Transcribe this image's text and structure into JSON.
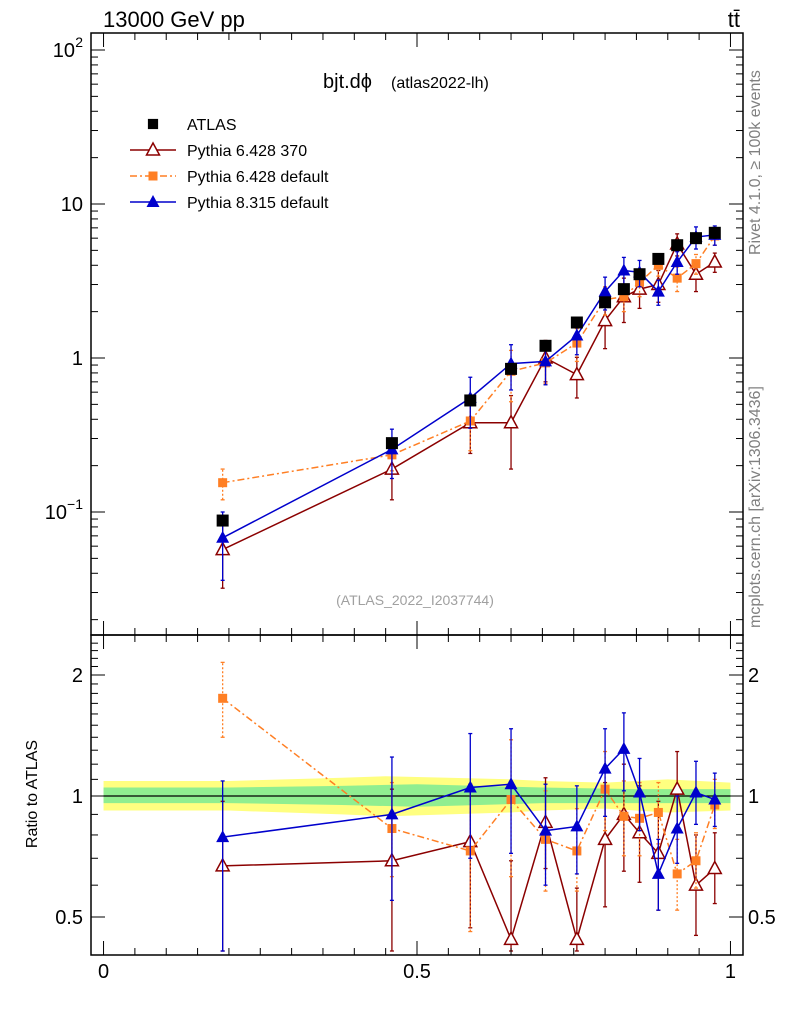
{
  "header": {
    "energy_label": "13000 GeV pp",
    "process_label": "tt̄"
  },
  "side_text": {
    "rivet": "Rivet 4.1.0, ≥ 100k events",
    "mcplots": "mcplots.cern.ch [arXiv:1306.3436]"
  },
  "chart_data": {
    "type": "line",
    "title_main": "bjt.dϕ",
    "title_sub": "(atlas2022-lh)",
    "analysis_label": "(ATLAS_2022_I2037744)",
    "main_panel": {
      "yscale": "log",
      "ylim": [
        0.02,
        130
      ],
      "xlim": [
        -0.02,
        1.02
      ],
      "y_ticks": [
        {
          "value": 0.1,
          "base": "10",
          "exp": "−1"
        },
        {
          "value": 1,
          "base": "1",
          "exp": ""
        },
        {
          "value": 10,
          "base": "10",
          "exp": ""
        },
        {
          "value": 100,
          "base": "10",
          "exp": "2"
        }
      ]
    },
    "ratio_panel": {
      "ylabel": "Ratio to ATLAS",
      "yscale": "log",
      "ylim": [
        0.4,
        2.4
      ],
      "y_ticks": [
        {
          "value": 0.5,
          "label": "0.5"
        },
        {
          "value": 1,
          "label": "1"
        },
        {
          "value": 2,
          "label": "2"
        }
      ],
      "x_ticks": [
        {
          "value": 0,
          "label": "0"
        },
        {
          "value": 0.5,
          "label": "0.5"
        },
        {
          "value": 1,
          "label": "1"
        }
      ],
      "band_outer": [
        [
          0.0,
          0.92,
          1.09
        ],
        [
          0.2,
          0.92,
          1.09
        ],
        [
          0.38,
          0.9,
          1.11
        ],
        [
          0.45,
          0.89,
          1.12
        ],
        [
          0.55,
          0.9,
          1.11
        ],
        [
          0.65,
          0.91,
          1.1
        ],
        [
          0.7,
          0.92,
          1.09
        ],
        [
          0.8,
          0.93,
          1.08
        ],
        [
          0.9,
          0.91,
          1.1
        ],
        [
          1.0,
          0.92,
          1.08
        ]
      ],
      "band_inner": [
        [
          0.0,
          0.96,
          1.05
        ],
        [
          0.2,
          0.96,
          1.05
        ],
        [
          0.38,
          0.95,
          1.06
        ],
        [
          0.5,
          0.94,
          1.07
        ],
        [
          0.6,
          0.95,
          1.06
        ],
        [
          0.7,
          0.96,
          1.05
        ],
        [
          0.85,
          0.96,
          1.04
        ],
        [
          1.0,
          0.96,
          1.04
        ]
      ]
    },
    "legend": [
      {
        "name": "ATLAS",
        "color": "#000000",
        "marker": "square"
      },
      {
        "name": "Pythia 6.428 370",
        "color": "#8b0000",
        "marker": "triangle-open"
      },
      {
        "name": "Pythia 6.428 default",
        "color": "#ff7f24",
        "marker": "square-small"
      },
      {
        "name": "Pythia 8.315 default",
        "color": "#0000cc",
        "marker": "triangle"
      }
    ],
    "series": [
      {
        "name": "ATLAS",
        "color": "#000000",
        "marker": "square",
        "line": "none",
        "x": [
          0.19,
          0.46,
          0.585,
          0.65,
          0.705,
          0.755,
          0.8,
          0.83,
          0.855,
          0.885,
          0.915,
          0.945,
          0.975
        ],
        "y": [
          0.088,
          0.28,
          0.53,
          0.85,
          1.2,
          1.7,
          2.3,
          2.8,
          3.5,
          4.4,
          5.4,
          6.0,
          6.5
        ],
        "err_lo": [
          0.006,
          0.02,
          0.03,
          0.05,
          0.07,
          0.1,
          0.13,
          0.16,
          0.2,
          0.25,
          0.3,
          0.4,
          0.5
        ],
        "err_hi": [
          0.006,
          0.02,
          0.03,
          0.05,
          0.07,
          0.1,
          0.13,
          0.16,
          0.2,
          0.25,
          0.3,
          0.4,
          0.5
        ]
      },
      {
        "name": "Pythia 6.428 370",
        "color": "#8b0000",
        "marker": "triangle-open",
        "line": "solid",
        "x": [
          0.19,
          0.46,
          0.585,
          0.65,
          0.705,
          0.755,
          0.8,
          0.83,
          0.855,
          0.885,
          0.915,
          0.945,
          0.975
        ],
        "y": [
          0.057,
          0.19,
          0.38,
          0.38,
          1.0,
          0.78,
          1.75,
          2.5,
          2.8,
          3.0,
          5.5,
          3.5,
          4.2
        ],
        "err_lo": [
          0.025,
          0.07,
          0.14,
          0.19,
          0.3,
          0.23,
          0.6,
          0.8,
          0.7,
          0.7,
          0.9,
          0.8,
          0.6
        ],
        "err_hi": [
          0.025,
          0.07,
          0.14,
          0.19,
          0.3,
          0.23,
          0.6,
          0.8,
          0.7,
          0.7,
          0.9,
          0.8,
          0.6
        ],
        "ratio": [
          0.67,
          0.69,
          0.77,
          0.44,
          0.86,
          0.44,
          0.78,
          0.9,
          0.81,
          0.72,
          1.04,
          0.6,
          0.66
        ],
        "ratio_err_lo": [
          0.3,
          0.35,
          0.3,
          0.25,
          0.2,
          0.15,
          0.25,
          0.25,
          0.2,
          0.2,
          0.2,
          0.15,
          0.12
        ],
        "ratio_err_hi": [
          0.3,
          0.35,
          0.3,
          0.25,
          0.25,
          0.15,
          0.3,
          0.3,
          0.25,
          0.25,
          0.25,
          0.2,
          0.15
        ]
      },
      {
        "name": "Pythia 6.428 default",
        "color": "#ff7f24",
        "marker": "square-small",
        "line": "dashdot",
        "x": [
          0.19,
          0.46,
          0.585,
          0.65,
          0.705,
          0.755,
          0.8,
          0.83,
          0.855,
          0.885,
          0.915,
          0.945,
          0.975
        ],
        "y": [
          0.155,
          0.235,
          0.39,
          0.82,
          0.93,
          1.25,
          2.4,
          2.5,
          3.1,
          4.0,
          3.3,
          4.1,
          6.2
        ],
        "err_lo": [
          0.035,
          0.05,
          0.14,
          0.3,
          0.25,
          0.3,
          0.5,
          0.5,
          0.6,
          0.6,
          0.6,
          0.6,
          0.8
        ],
        "err_hi": [
          0.035,
          0.05,
          0.14,
          0.3,
          0.25,
          0.3,
          0.5,
          0.5,
          0.6,
          0.6,
          0.6,
          0.6,
          0.8
        ],
        "ratio": [
          1.75,
          0.83,
          0.73,
          0.98,
          0.78,
          0.73,
          1.04,
          0.89,
          0.88,
          0.91,
          0.64,
          0.69,
          0.95
        ],
        "ratio_err_lo": [
          0.35,
          0.2,
          0.27,
          0.35,
          0.2,
          0.15,
          0.22,
          0.18,
          0.17,
          0.15,
          0.12,
          0.1,
          0.12
        ],
        "ratio_err_hi": [
          0.4,
          0.25,
          0.3,
          0.4,
          0.25,
          0.2,
          0.25,
          0.2,
          0.2,
          0.17,
          0.14,
          0.12,
          0.15
        ]
      },
      {
        "name": "Pythia 8.315 default",
        "color": "#0000cc",
        "marker": "triangle",
        "line": "solid",
        "x": [
          0.19,
          0.46,
          0.585,
          0.65,
          0.705,
          0.755,
          0.8,
          0.83,
          0.855,
          0.885,
          0.915,
          0.945,
          0.975
        ],
        "y": [
          0.068,
          0.255,
          0.55,
          0.92,
          0.95,
          1.4,
          2.7,
          3.7,
          3.6,
          2.7,
          4.2,
          6.1,
          6.3
        ],
        "err_lo": [
          0.032,
          0.09,
          0.2,
          0.3,
          0.28,
          0.35,
          0.65,
          0.8,
          0.7,
          0.5,
          0.7,
          1.0,
          0.9
        ],
        "err_hi": [
          0.032,
          0.09,
          0.2,
          0.3,
          0.28,
          0.35,
          0.65,
          0.8,
          0.7,
          0.5,
          0.7,
          1.0,
          0.9
        ],
        "ratio": [
          0.79,
          0.9,
          1.05,
          1.07,
          0.82,
          0.84,
          1.17,
          1.31,
          1.02,
          0.64,
          0.83,
          1.02,
          0.98
        ],
        "ratio_err_lo": [
          0.43,
          0.35,
          0.35,
          0.35,
          0.22,
          0.2,
          0.28,
          0.28,
          0.2,
          0.12,
          0.15,
          0.17,
          0.14
        ],
        "ratio_err_hi": [
          0.3,
          0.35,
          0.38,
          0.4,
          0.25,
          0.22,
          0.3,
          0.3,
          0.22,
          0.14,
          0.17,
          0.2,
          0.16
        ]
      }
    ]
  }
}
